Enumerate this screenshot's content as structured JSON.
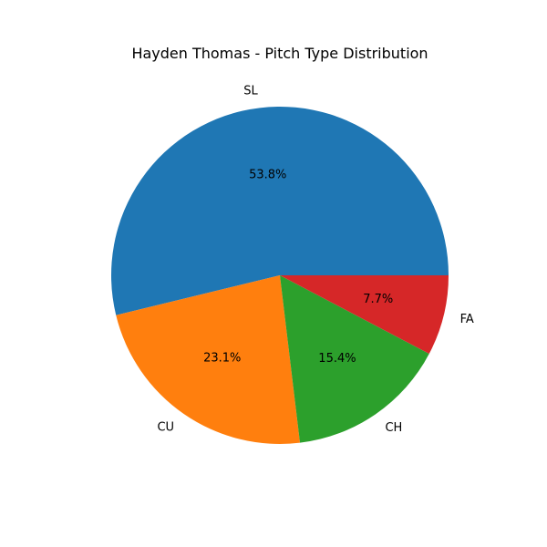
{
  "chart_data": {
    "type": "pie",
    "title": "Hayden Thomas - Pitch Type Distribution",
    "categories": [
      "SL",
      "CU",
      "CH",
      "FA"
    ],
    "values": [
      53.8,
      23.1,
      15.4,
      7.7
    ],
    "percent_labels": [
      "53.8%",
      "23.1%",
      "15.4%",
      "7.7%"
    ],
    "colors": [
      "#1f77b4",
      "#ff7f0e",
      "#2ca02c",
      "#d62728"
    ],
    "start_angle_deg": 0,
    "direction": "counterclockwise"
  }
}
